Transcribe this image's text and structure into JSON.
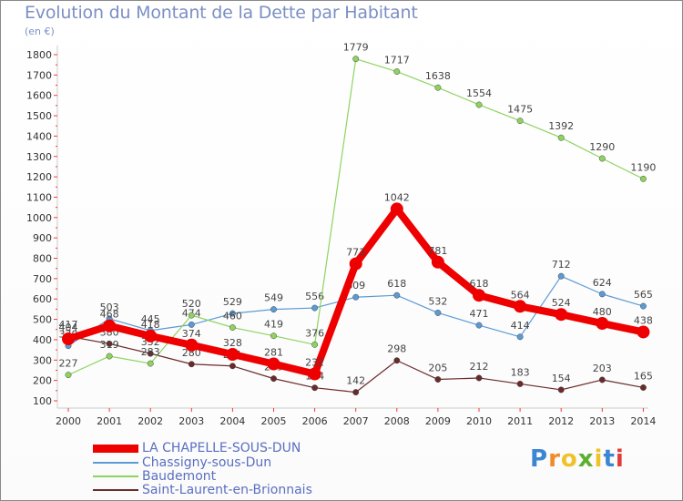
{
  "title": "Evolution du Montant de la Dette par Habitant",
  "unit_label": "(en €)",
  "logo_text": "Proxiti",
  "chart_data": {
    "type": "line",
    "x": [
      "2000",
      "2001",
      "2002",
      "2003",
      "2004",
      "2005",
      "2006",
      "2007",
      "2008",
      "2009",
      "2010",
      "2011",
      "2012",
      "2013",
      "2014"
    ],
    "ylim": [
      100,
      1800
    ],
    "yticks": [
      100,
      200,
      300,
      400,
      500,
      600,
      700,
      800,
      900,
      1000,
      1100,
      1200,
      1300,
      1400,
      1500,
      1600,
      1700,
      1800
    ],
    "grid": false,
    "legend_position": "bottom-left",
    "series": [
      {
        "name": "Saint-Laurent-en-Brionnais",
        "color": "#6b2a2a",
        "values": [
          417,
          380,
          332,
          280,
          271,
          209,
          164,
          142,
          298,
          205,
          212,
          183,
          154,
          203,
          165
        ],
        "labels": [
          "417",
          "380",
          "332",
          "280",
          "271",
          "209",
          "164",
          "142",
          "298",
          "205",
          "212",
          "183",
          "154",
          "203",
          "165"
        ]
      },
      {
        "name": "Chassigny-sous-Dun",
        "color": "#5b9bd5",
        "values": [
          370,
          503,
          445,
          474,
          529,
          549,
          556,
          609,
          618,
          532,
          471,
          414,
          712,
          624,
          565
        ],
        "labels": [
          "370",
          "503",
          "445",
          "474",
          "529",
          "549",
          "556",
          "609",
          "618",
          "532",
          "471",
          "414",
          "712",
          "624",
          "565"
        ]
      },
      {
        "name": "Baudemont",
        "color": "#8ed360",
        "values": [
          227,
          319,
          283,
          520,
          460,
          419,
          376,
          1779,
          1717,
          1638,
          1554,
          1475,
          1392,
          1290,
          1190
        ],
        "labels": [
          "227",
          "319",
          "283",
          "520",
          "460",
          "419",
          "376",
          "1779",
          "1717",
          "1638",
          "1554",
          "1475",
          "1392",
          "1290",
          "1190"
        ]
      },
      {
        "name": "LA CHAPELLE-SOUS-DUN",
        "color": "#ee0000",
        "values": [
          404,
          468,
          418,
          374,
          328,
          281,
          232,
          773,
          1042,
          781,
          618,
          564,
          524,
          480,
          438
        ],
        "labels": [
          "404",
          "468",
          "418",
          "374",
          "328",
          "281",
          "232",
          "773",
          "1042",
          "781",
          "618",
          "564",
          "524",
          "480",
          "438"
        ]
      }
    ]
  }
}
